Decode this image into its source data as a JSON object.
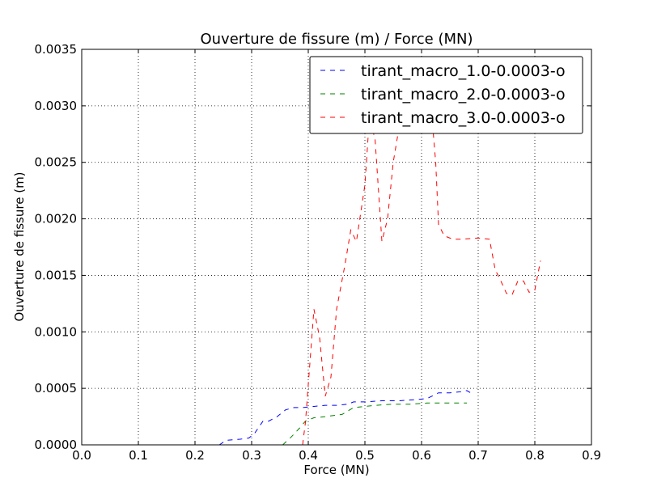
{
  "chart_data": {
    "type": "line",
    "title": "Ouverture de fissure (m) / Force (MN)",
    "xlabel": "Force (MN)",
    "ylabel": "Ouverture de fissure (m)",
    "xlim": [
      0.0,
      0.9
    ],
    "ylim": [
      0.0,
      0.0035
    ],
    "xticks": [
      "0.0",
      "0.1",
      "0.2",
      "0.3",
      "0.4",
      "0.5",
      "0.6",
      "0.7",
      "0.8",
      "0.9"
    ],
    "yticks": [
      "0.0000",
      "0.0005",
      "0.0010",
      "0.0015",
      "0.0020",
      "0.0025",
      "0.0030",
      "0.0035"
    ],
    "grid": true,
    "legend_position": "top-right",
    "line_style": "dashed",
    "series": [
      {
        "name": "tirant_macro_1.0-0.0003-o",
        "color": "#0000ff",
        "points": [
          [
            0.243,
            0.0
          ],
          [
            0.255,
            4e-05
          ],
          [
            0.28,
            5e-05
          ],
          [
            0.295,
            6e-05
          ],
          [
            0.305,
            0.0001
          ],
          [
            0.32,
            0.00021
          ],
          [
            0.33,
            0.00021
          ],
          [
            0.345,
            0.00025
          ],
          [
            0.36,
            0.00031
          ],
          [
            0.375,
            0.00033
          ],
          [
            0.39,
            0.00033
          ],
          [
            0.41,
            0.00034
          ],
          [
            0.43,
            0.00035
          ],
          [
            0.45,
            0.00035
          ],
          [
            0.47,
            0.00036
          ],
          [
            0.48,
            0.00038
          ],
          [
            0.5,
            0.00038
          ],
          [
            0.53,
            0.00039
          ],
          [
            0.56,
            0.00039
          ],
          [
            0.59,
            0.0004
          ],
          [
            0.61,
            0.00041
          ],
          [
            0.63,
            0.00046
          ],
          [
            0.65,
            0.00046
          ],
          [
            0.67,
            0.00047
          ],
          [
            0.68,
            0.00048
          ],
          [
            0.69,
            0.00045
          ]
        ]
      },
      {
        "name": "tirant_macro_2.0-0.0003-o",
        "color": "#008000",
        "points": [
          [
            0.355,
            0.0
          ],
          [
            0.37,
            7e-05
          ],
          [
            0.385,
            0.00015
          ],
          [
            0.395,
            0.00021
          ],
          [
            0.41,
            0.00024
          ],
          [
            0.43,
            0.00025
          ],
          [
            0.46,
            0.00027
          ],
          [
            0.48,
            0.00033
          ],
          [
            0.5,
            0.00034
          ],
          [
            0.52,
            0.00035
          ],
          [
            0.55,
            0.00036
          ],
          [
            0.58,
            0.00036
          ],
          [
            0.61,
            0.00037
          ],
          [
            0.64,
            0.00037
          ],
          [
            0.66,
            0.00037
          ],
          [
            0.68,
            0.00037
          ]
        ]
      },
      {
        "name": "tirant_macro_3.0-0.0003-o",
        "color": "#ff0000",
        "points": [
          [
            0.39,
            0.0
          ],
          [
            0.395,
            0.0002
          ],
          [
            0.41,
            0.0012
          ],
          [
            0.42,
            0.00095
          ],
          [
            0.43,
            0.00043
          ],
          [
            0.44,
            0.0006
          ],
          [
            0.45,
            0.0012
          ],
          [
            0.465,
            0.0016
          ],
          [
            0.475,
            0.0019
          ],
          [
            0.485,
            0.0018
          ],
          [
            0.5,
            0.0023
          ],
          [
            0.508,
            0.0029
          ],
          [
            0.518,
            0.0027
          ],
          [
            0.53,
            0.0018
          ],
          [
            0.54,
            0.002
          ],
          [
            0.55,
            0.0025
          ],
          [
            0.56,
            0.0028
          ],
          [
            0.575,
            0.003
          ],
          [
            0.59,
            0.0031
          ],
          [
            0.605,
            0.0032
          ],
          [
            0.615,
            0.0031
          ],
          [
            0.625,
            0.0025
          ],
          [
            0.63,
            0.00195
          ],
          [
            0.64,
            0.00185
          ],
          [
            0.655,
            0.00182
          ],
          [
            0.67,
            0.00182
          ],
          [
            0.7,
            0.00183
          ],
          [
            0.72,
            0.00182
          ],
          [
            0.73,
            0.00155
          ],
          [
            0.74,
            0.00145
          ],
          [
            0.75,
            0.00134
          ],
          [
            0.76,
            0.00133
          ],
          [
            0.77,
            0.00145
          ],
          [
            0.78,
            0.00145
          ],
          [
            0.79,
            0.00135
          ],
          [
            0.8,
            0.00137
          ],
          [
            0.81,
            0.00163
          ]
        ]
      }
    ]
  }
}
